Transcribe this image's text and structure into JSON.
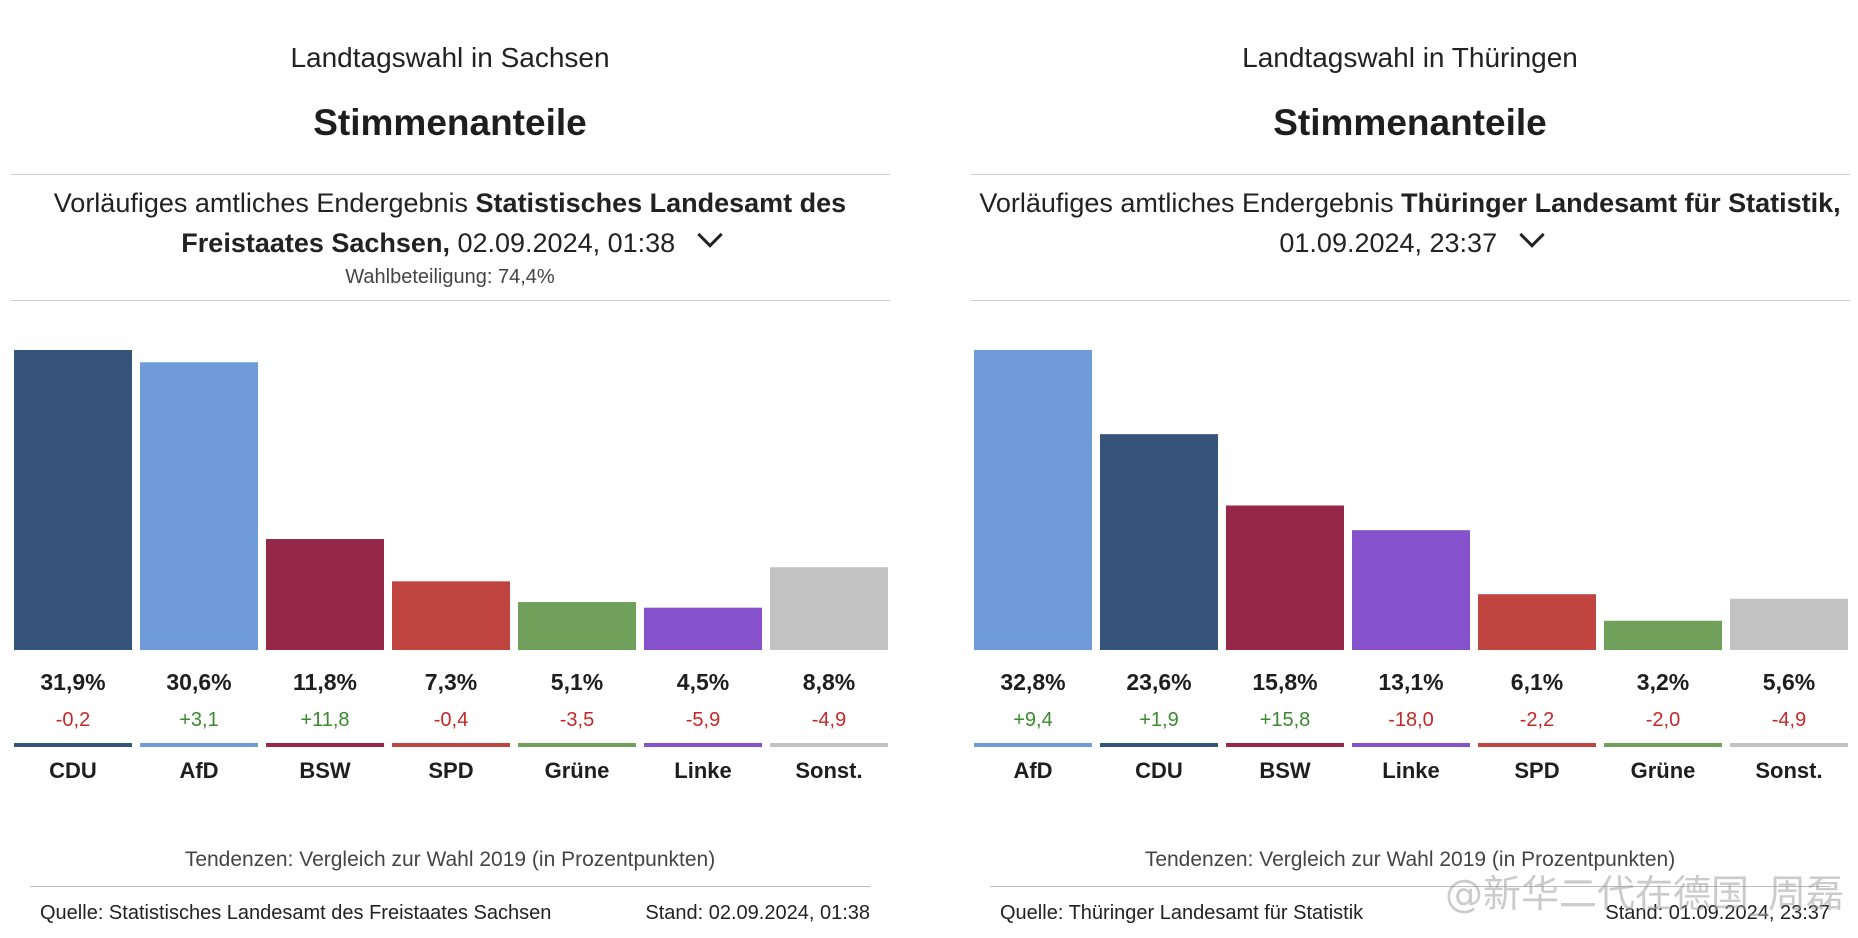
{
  "panels": [
    {
      "title": "Landtagswahl in Sachsen",
      "subtitle": "Stimmenanteile",
      "source_prefix": "Vorläufiges amtliches Endergebnis",
      "source_bold": "Statistisches Landesamt des Freistaates Sachsen,",
      "timestamp": "02.09.2024, 01:38",
      "turnout": "Wahlbeteiligung: 74,4%",
      "tendenz": "Tendenzen: Vergleich zur Wahl 2019 (in Prozentpunkten)",
      "footer_source": "Quelle: Statistisches Landesamt des Freistaates Sachsen",
      "footer_stand": "Stand: 02.09.2024, 01:38"
    },
    {
      "title": "Landtagswahl in Thüringen",
      "subtitle": "Stimmenanteile",
      "source_prefix": "Vorläufiges amtliches Endergebnis",
      "source_bold": "Thüringer Landesamt für Statistik,",
      "timestamp": "01.09.2024, 23:37",
      "turnout": "",
      "tendenz": "Tendenzen: Vergleich zur Wahl 2019 (in Prozentpunkten)",
      "footer_source": "Quelle: Thüringer Landesamt für Statistik",
      "footer_stand": "Stand: 01.09.2024, 23:37"
    }
  ],
  "watermark": "@新华二代在德国_周磊",
  "colors": {
    "CDU": "#36537a",
    "AfD": "#6f9bd8",
    "BSW": "#952848",
    "SPD": "#c0443f",
    "Grüne": "#70a05a",
    "Linke": "#8552cc",
    "Sonst.": "#c2c2c2",
    "positive": "#3a8a2e",
    "negative": "#c62828"
  },
  "chart_data": [
    {
      "type": "bar",
      "title": "Stimmenanteile",
      "categories": [
        "CDU",
        "AfD",
        "BSW",
        "SPD",
        "Grüne",
        "Linke",
        "Sonst."
      ],
      "values": [
        31.9,
        30.6,
        11.8,
        7.3,
        5.1,
        4.5,
        8.8
      ],
      "value_labels": [
        "31,9%",
        "30,6%",
        "11,8%",
        "7,3%",
        "5,1%",
        "4,5%",
        "8,8%"
      ],
      "changes": [
        -0.2,
        3.1,
        11.8,
        -0.4,
        -3.5,
        -5.9,
        -4.9
      ],
      "change_labels": [
        "-0,2",
        "+3,1",
        "+11,8",
        "-0,4",
        "-3,5",
        "-5,9",
        "-4,9"
      ],
      "ylim": [
        0,
        31.9
      ]
    },
    {
      "type": "bar",
      "title": "Stimmenanteile",
      "categories": [
        "AfD",
        "CDU",
        "BSW",
        "Linke",
        "SPD",
        "Grüne",
        "Sonst."
      ],
      "values": [
        32.8,
        23.6,
        15.8,
        13.1,
        6.1,
        3.2,
        5.6
      ],
      "value_labels": [
        "32,8%",
        "23,6%",
        "15,8%",
        "13,1%",
        "6,1%",
        "3,2%",
        "5,6%"
      ],
      "changes": [
        9.4,
        1.9,
        15.8,
        -18.0,
        -2.2,
        -2.0,
        -4.9
      ],
      "change_labels": [
        "+9,4",
        "+1,9",
        "+15,8",
        "-18,0",
        "-2,2",
        "-2,0",
        "-4,9"
      ],
      "ylim": [
        0,
        32.8
      ]
    }
  ]
}
